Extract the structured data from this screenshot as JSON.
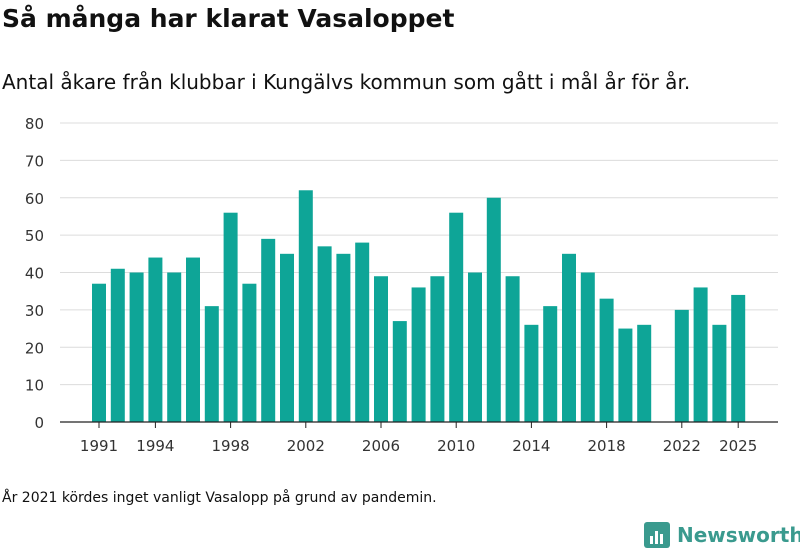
{
  "header": {
    "title": "Så många har klarat Vasaloppet",
    "subtitle": "Antal åkare från klubbar i Kungälvs kommun som gått i mål år för år."
  },
  "footnote": "År 2021 kördes inget vanligt Vasalopp på grund av pandemin.",
  "brand": {
    "name": "Newsworthy",
    "icon": "bar-chart-logo-icon",
    "color": "#3a9a8e"
  },
  "chart_data": {
    "type": "bar",
    "title": "Så många har klarat Vasaloppet",
    "subtitle": "Antal åkare från klubbar i Kungälvs kommun som gått i mål år för år.",
    "xlabel": "",
    "ylabel": "",
    "bar_color": "#0ea597",
    "grid": true,
    "ylim": [
      0,
      80
    ],
    "y_ticks": [
      0,
      10,
      20,
      30,
      40,
      50,
      60,
      70,
      80
    ],
    "x_tick_labels": [
      "1991",
      "1994",
      "1998",
      "2002",
      "2006",
      "2010",
      "2014",
      "2018",
      "2022",
      "2025"
    ],
    "categories": [
      "1991",
      "1992",
      "1993",
      "1994",
      "1995",
      "1996",
      "1997",
      "1998",
      "1999",
      "2000",
      "2001",
      "2002",
      "2003",
      "2004",
      "2005",
      "2006",
      "2007",
      "2008",
      "2009",
      "2010",
      "2011",
      "2012",
      "2013",
      "2014",
      "2015",
      "2016",
      "2017",
      "2018",
      "2019",
      "2020",
      "2021",
      "2022",
      "2023",
      "2024",
      "2025"
    ],
    "values": [
      37,
      41,
      40,
      44,
      40,
      44,
      31,
      56,
      37,
      49,
      45,
      62,
      47,
      45,
      48,
      39,
      27,
      36,
      39,
      56,
      40,
      60,
      39,
      26,
      31,
      45,
      40,
      33,
      25,
      26,
      null,
      30,
      36,
      26,
      34
    ]
  }
}
